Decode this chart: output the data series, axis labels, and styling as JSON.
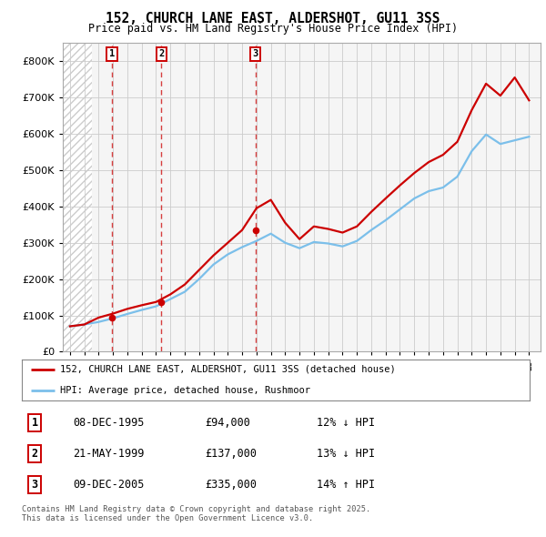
{
  "title": "152, CHURCH LANE EAST, ALDERSHOT, GU11 3SS",
  "subtitle": "Price paid vs. HM Land Registry's House Price Index (HPI)",
  "hpi_line_color": "#7bbfea",
  "price_line_color": "#cc0000",
  "background_color": "#ffffff",
  "plot_bg_color": "#f5f5f5",
  "ylim": [
    0,
    850000
  ],
  "yticks": [
    0,
    100000,
    200000,
    300000,
    400000,
    500000,
    600000,
    700000,
    800000
  ],
  "ytick_labels": [
    "£0",
    "£100K",
    "£200K",
    "£300K",
    "£400K",
    "£500K",
    "£600K",
    "£700K",
    "£800K"
  ],
  "sale_dates": [
    "1995-12-08",
    "1999-05-21",
    "2005-12-09"
  ],
  "sale_prices": [
    94000,
    137000,
    335000
  ],
  "sale_years": [
    1995.92,
    1999.38,
    2005.92
  ],
  "sale_labels": [
    "1",
    "2",
    "3"
  ],
  "legend_entries": [
    "152, CHURCH LANE EAST, ALDERSHOT, GU11 3SS (detached house)",
    "HPI: Average price, detached house, Rushmoor"
  ],
  "table_rows": [
    [
      "1",
      "08-DEC-1995",
      "£94,000",
      "12% ↓ HPI"
    ],
    [
      "2",
      "21-MAY-1999",
      "£137,000",
      "13% ↓ HPI"
    ],
    [
      "3",
      "09-DEC-2005",
      "£335,000",
      "14% ↑ HPI"
    ]
  ],
  "footnote": "Contains HM Land Registry data © Crown copyright and database right 2025.\nThis data is licensed under the Open Government Licence v3.0.",
  "hpi_years": [
    1993,
    1994,
    1995,
    1996,
    1997,
    1998,
    1999,
    2000,
    2001,
    2002,
    2003,
    2004,
    2005,
    2006,
    2007,
    2008,
    2009,
    2010,
    2011,
    2012,
    2013,
    2014,
    2015,
    2016,
    2017,
    2018,
    2019,
    2020,
    2021,
    2022,
    2023,
    2024,
    2025
  ],
  "hpi_values": [
    70000,
    75000,
    82000,
    92000,
    104000,
    115000,
    125000,
    145000,
    165000,
    200000,
    240000,
    268000,
    288000,
    305000,
    325000,
    300000,
    285000,
    302000,
    298000,
    290000,
    305000,
    335000,
    362000,
    392000,
    422000,
    442000,
    452000,
    482000,
    552000,
    598000,
    572000,
    582000,
    592000
  ],
  "price_years": [
    1993,
    1994,
    1995,
    1996,
    1997,
    1998,
    1999,
    2000,
    2001,
    2002,
    2003,
    2004,
    2005,
    2006,
    2007,
    2008,
    2009,
    2010,
    2011,
    2012,
    2013,
    2014,
    2015,
    2016,
    2017,
    2018,
    2019,
    2020,
    2021,
    2022,
    2023,
    2024,
    2025
  ],
  "price_values": [
    70000,
    75000,
    94000,
    105000,
    118000,
    128000,
    137000,
    158000,
    185000,
    225000,
    265000,
    300000,
    335000,
    395000,
    418000,
    355000,
    310000,
    345000,
    338000,
    328000,
    345000,
    385000,
    422000,
    458000,
    492000,
    522000,
    542000,
    578000,
    665000,
    738000,
    705000,
    755000,
    692000
  ],
  "xlim_start": 1992.5,
  "xlim_end": 2025.8,
  "hatch_end": 1994.5
}
